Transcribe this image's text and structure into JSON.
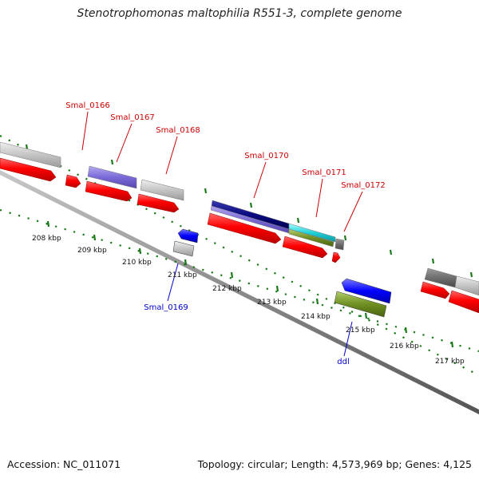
{
  "title": "Stenotrophomonas maltophilia R551-3, complete genome",
  "footer": {
    "accession": "Accession: NC_011071",
    "stats": "Topology: circular; Length: 4,573,969 bp; Genes: 4,125"
  },
  "colors": {
    "red_gene": "#ff0000",
    "grey_gene": "#c0c0c0",
    "blue_label": "#0000cc",
    "red_label": "#cc0000",
    "tick_green": "#1a7a1a",
    "backbone": "#888888"
  },
  "gene_labels": [
    {
      "name": "Smal_0166",
      "color": "red"
    },
    {
      "name": "Smal_0167",
      "color": "red"
    },
    {
      "name": "Smal_0168",
      "color": "red"
    },
    {
      "name": "Smal_0170",
      "color": "red"
    },
    {
      "name": "Smal_0171",
      "color": "red"
    },
    {
      "name": "Smal_0172",
      "color": "red"
    },
    {
      "name": "Smal_0169",
      "color": "blue"
    },
    {
      "name": "ddl",
      "color": "blue"
    }
  ],
  "kbp_labels": [
    "208 kbp",
    "209 kbp",
    "210 kbp",
    "211 kbp",
    "212 kbp",
    "213 kbp",
    "214 kbp",
    "215 kbp",
    "216 kbp",
    "217 kbp"
  ]
}
